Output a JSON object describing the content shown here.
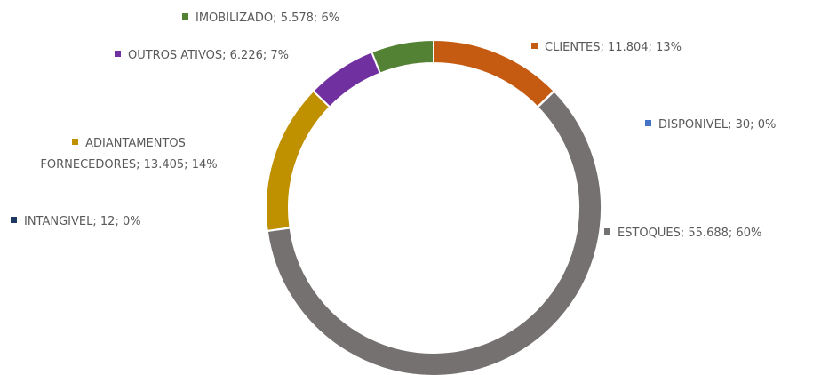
{
  "chart_data": {
    "type": "donut",
    "categories": [
      "CLIENTES",
      "DISPONIVEL",
      "ESTOQUES",
      "INTANGIVEL",
      "ADIANTAMENTOS FORNECEDORES",
      "OUTROS ATIVOS",
      "IMOBILIZADO"
    ],
    "values": [
      11804,
      30,
      55688,
      12,
      13405,
      6226,
      5578
    ],
    "value_labels": [
      "11.804",
      "30",
      "55.688",
      "12",
      "13.405",
      "6.226",
      "5.578"
    ],
    "percent_labels": [
      "13%",
      "0%",
      "60%",
      "0%",
      "14%",
      "7%",
      "6%"
    ],
    "separator": ";",
    "colors": [
      "#c55a11",
      "#4472c4",
      "#767171",
      "#203864",
      "#bf9000",
      "#7030a0",
      "#548235"
    ]
  }
}
